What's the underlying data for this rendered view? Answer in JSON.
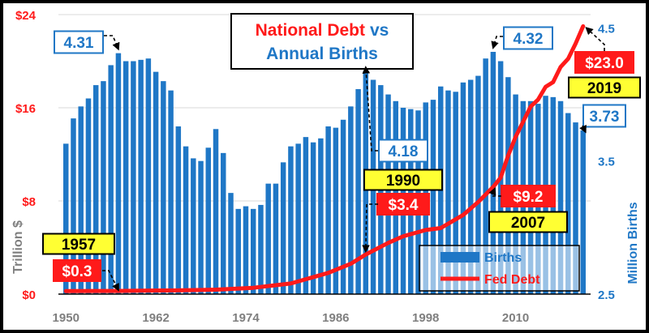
{
  "chart_data": {
    "type": "bar+line",
    "title_part1": "National Debt",
    "title_part2": "vs",
    "title_line2": "Annual Births",
    "ylabel_left": "Trillion $",
    "ylabel_right": "Million Births",
    "x_ticks": [
      "1950",
      "1962",
      "1974",
      "1986",
      "1998",
      "2010"
    ],
    "y_left_ticks": [
      "$0",
      "$8",
      "$16",
      "$24"
    ],
    "y_right_ticks": [
      "2.5",
      "3.5",
      "4.5"
    ],
    "xlim": [
      1949,
      2020
    ],
    "ylim_left": [
      0,
      24
    ],
    "ylim_right": [
      2.5,
      4.6
    ],
    "legend": [
      {
        "name": "Births",
        "color": "#1f77c6"
      },
      {
        "name": "Fed Debt",
        "color": "#ff1a1a"
      }
    ],
    "births": {
      "years": [
        1950,
        1951,
        1952,
        1953,
        1954,
        1955,
        1956,
        1957,
        1958,
        1959,
        1960,
        1961,
        1962,
        1963,
        1964,
        1965,
        1966,
        1967,
        1968,
        1969,
        1970,
        1971,
        1972,
        1973,
        1974,
        1975,
        1976,
        1977,
        1978,
        1979,
        1980,
        1981,
        1982,
        1983,
        1984,
        1985,
        1986,
        1987,
        1988,
        1989,
        1990,
        1991,
        1992,
        1993,
        1994,
        1995,
        1996,
        1997,
        1998,
        1999,
        2000,
        2001,
        2002,
        2003,
        2004,
        2005,
        2006,
        2007,
        2008,
        2009,
        2010,
        2011,
        2012,
        2013,
        2014,
        2015,
        2016,
        2017,
        2018,
        2019
      ],
      "values": [
        3.63,
        3.82,
        3.91,
        3.97,
        4.07,
        4.1,
        4.22,
        4.31,
        4.25,
        4.25,
        4.26,
        4.27,
        4.17,
        4.1,
        4.03,
        3.76,
        3.61,
        3.52,
        3.5,
        3.6,
        3.74,
        3.56,
        3.26,
        3.14,
        3.16,
        3.14,
        3.17,
        3.33,
        3.33,
        3.49,
        3.61,
        3.63,
        3.68,
        3.64,
        3.67,
        3.76,
        3.75,
        3.81,
        3.91,
        4.04,
        4.18,
        4.11,
        4.07,
        4.0,
        3.95,
        3.9,
        3.89,
        3.88,
        3.94,
        3.96,
        4.06,
        4.03,
        4.02,
        4.09,
        4.11,
        4.14,
        4.27,
        4.32,
        4.25,
        4.13,
        4.0,
        3.95,
        3.95,
        3.93,
        3.99,
        3.98,
        3.95,
        3.86,
        3.79,
        3.73
      ]
    },
    "debt": {
      "years": [
        1950,
        1955,
        1957,
        1960,
        1965,
        1970,
        1975,
        1980,
        1985,
        1988,
        1990,
        1993,
        1995,
        1998,
        2000,
        2003,
        2005,
        2007,
        2008,
        2009,
        2010,
        2011,
        2012,
        2013,
        2014,
        2015,
        2016,
        2017,
        2018,
        2019
      ],
      "values": [
        0.26,
        0.27,
        0.27,
        0.29,
        0.32,
        0.38,
        0.54,
        0.91,
        1.82,
        2.6,
        3.4,
        4.4,
        4.97,
        5.5,
        5.67,
        6.8,
        7.9,
        9.2,
        10.0,
        11.9,
        13.5,
        14.8,
        16.1,
        16.7,
        17.8,
        18.2,
        19.5,
        20.2,
        21.5,
        23.0
      ]
    },
    "annotations": [
      {
        "value": "4.31",
        "style": "births"
      },
      {
        "value": "4.18",
        "style": "births"
      },
      {
        "value": "4.32",
        "style": "births"
      },
      {
        "value": "3.73",
        "style": "births"
      },
      {
        "year": "1957",
        "value": "$0.3",
        "style": "debt"
      },
      {
        "year": "1990",
        "value": "$3.4",
        "style": "debt"
      },
      {
        "year": "2007",
        "value": "$9.2",
        "style": "debt"
      },
      {
        "year": "2019",
        "value": "$23.0",
        "style": "debt"
      }
    ],
    "colors": {
      "bar": "#1f77c6",
      "line": "#ff1a1a",
      "title_red": "#ff1a1a",
      "title_blue": "#1f77c6",
      "year_box": "#ffff33",
      "grid": "#d9d9d9"
    }
  }
}
